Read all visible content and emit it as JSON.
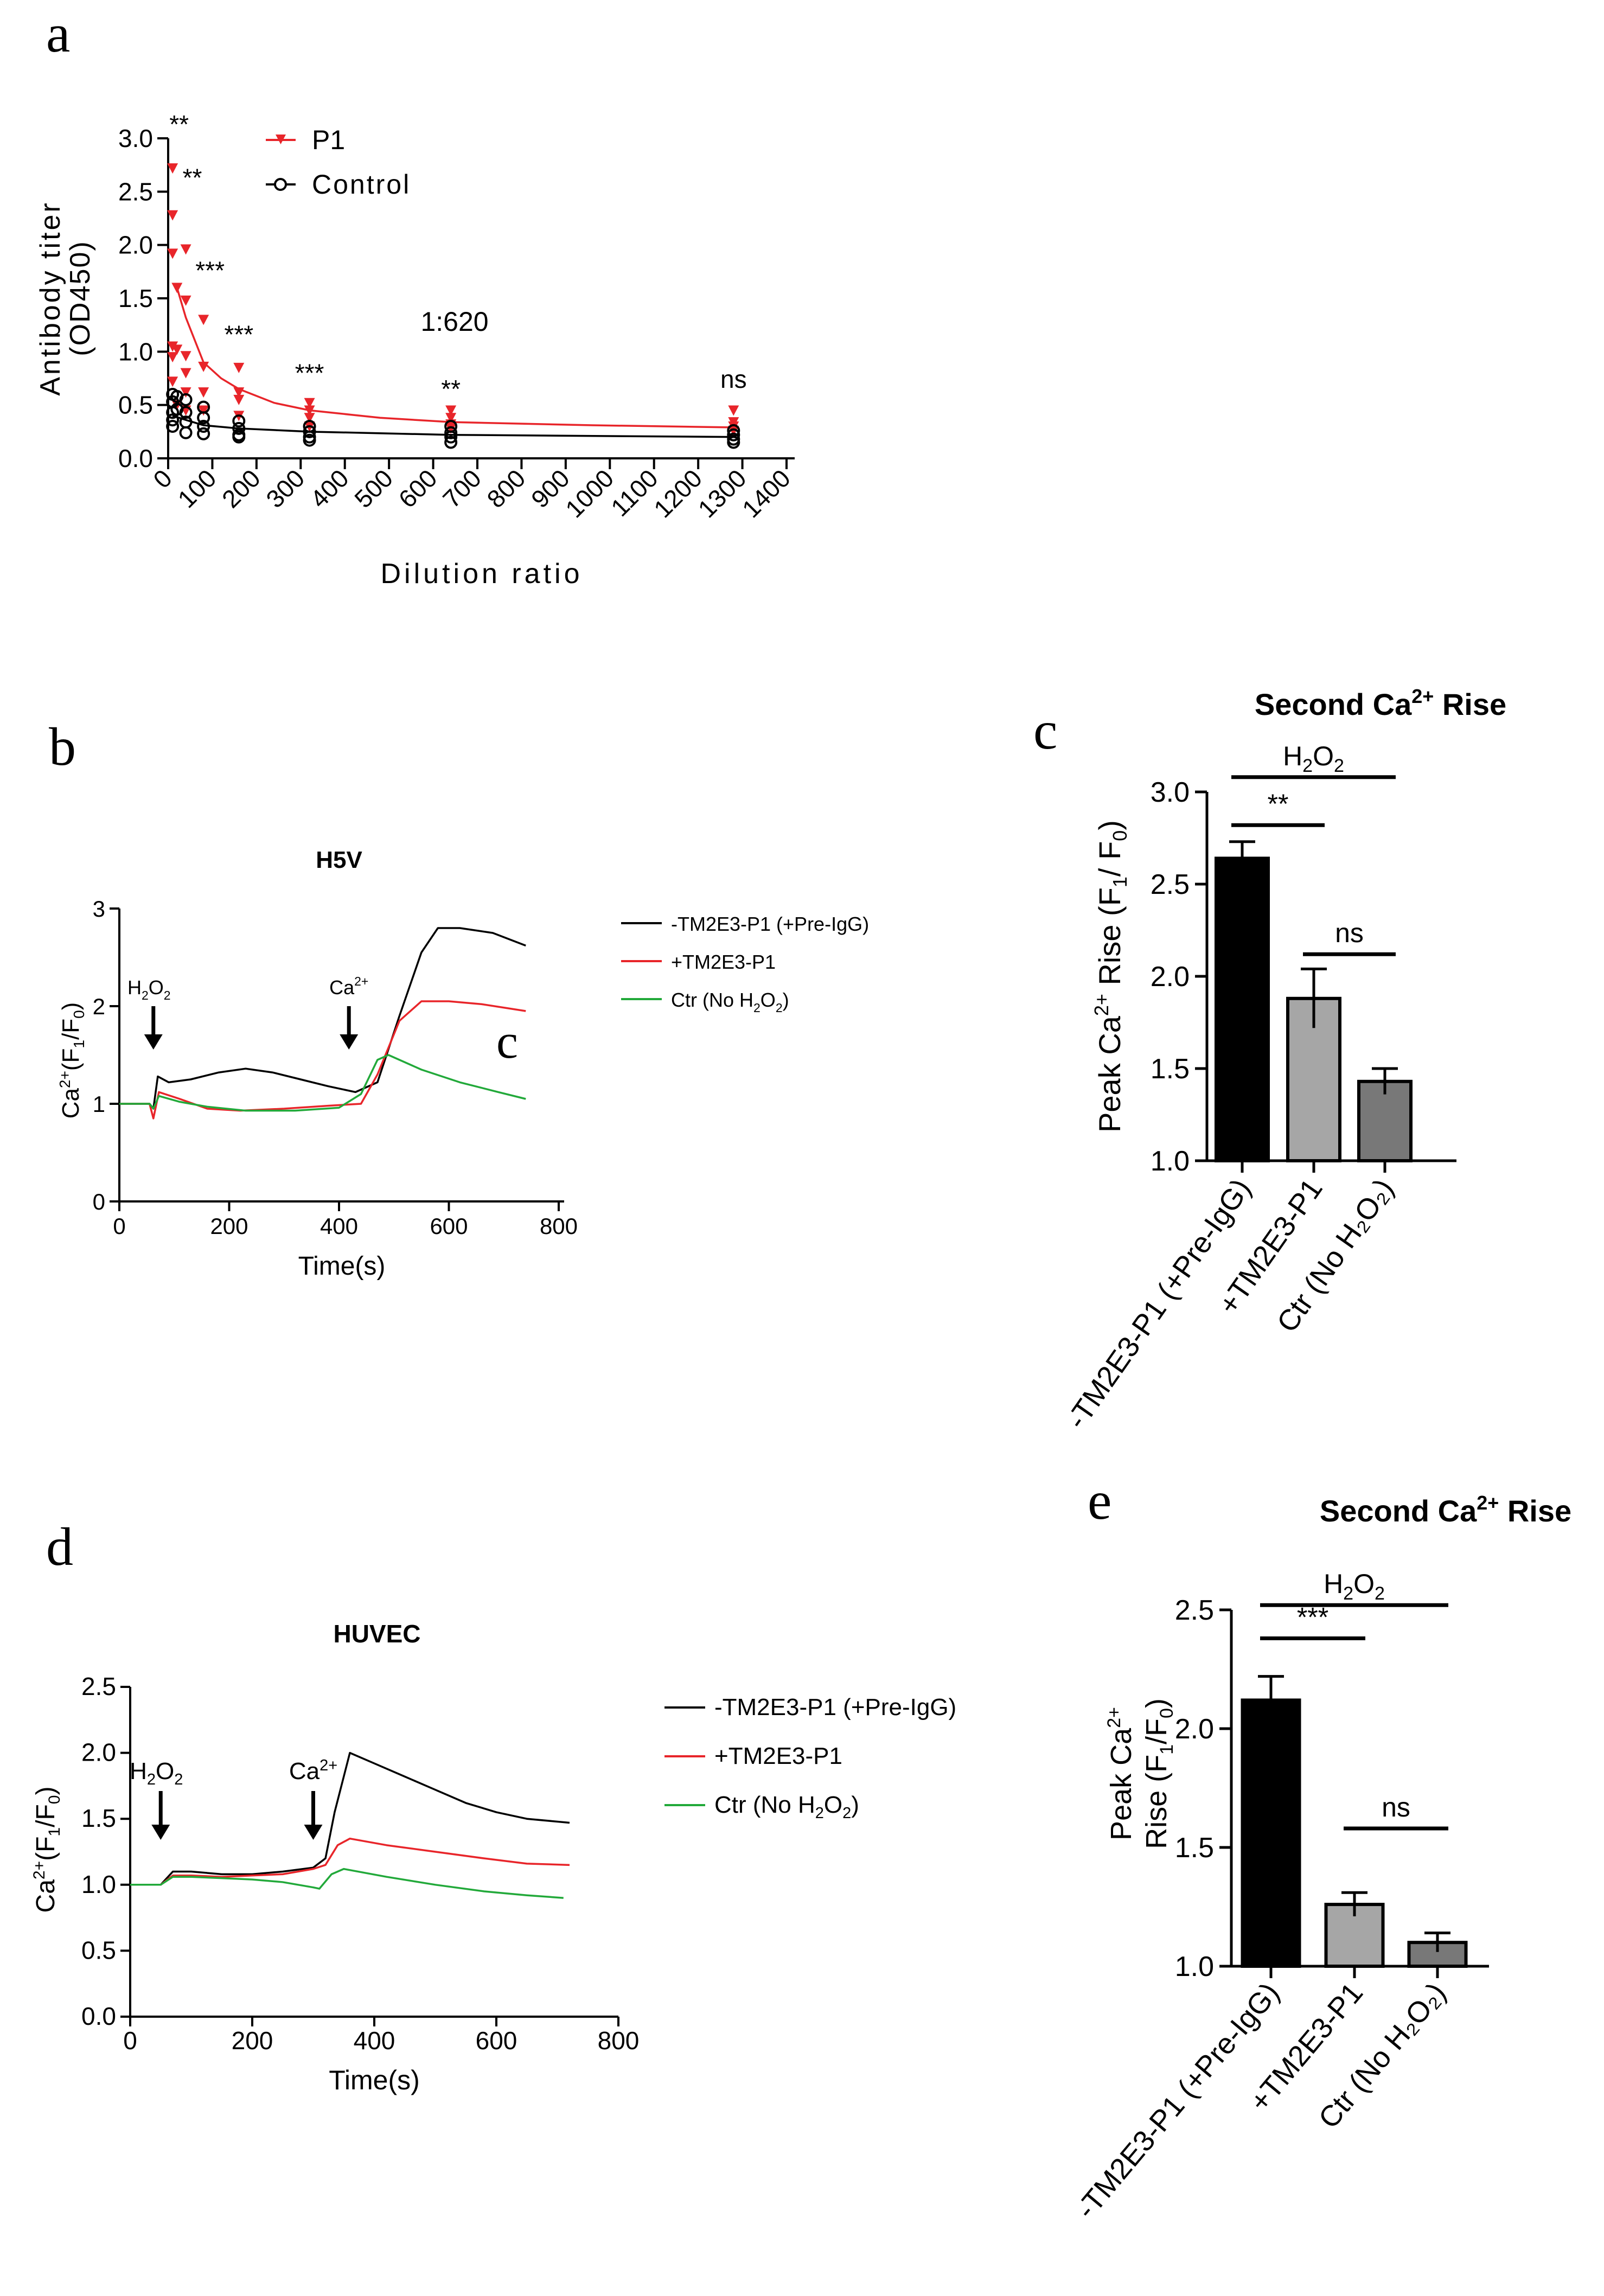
{
  "colors": {
    "p1": "#e8252a",
    "control": "#000000",
    "black_trace": "#000000",
    "red_trace": "#e8252a",
    "green_trace": "#22a93a",
    "bar_black": "#000000",
    "bar_light": "#a6a6a6",
    "bar_mid": "#787878"
  },
  "chart_data": [
    {
      "panel": "a",
      "type": "scatter",
      "panel_label": "a",
      "xlabel": "Dilution ratio",
      "ylabel_line1": "Antibody titer",
      "ylabel_line2": "(OD450)",
      "xlim": [
        0,
        1400
      ],
      "ylim": [
        0,
        3.0
      ],
      "xticks": [
        "0",
        "100",
        "200",
        "300",
        "400",
        "500",
        "600",
        "700",
        "800",
        "900",
        "1000",
        "1100",
        "1200",
        "1300",
        "1400"
      ],
      "yticks": [
        "0.0",
        "0.5",
        "1.0",
        "1.5",
        "2.0",
        "2.5",
        "3.0"
      ],
      "legend": [
        "P1",
        "Control"
      ],
      "annotation": "1:620",
      "series": [
        {
          "name": "P1",
          "marker": "triangle-down",
          "points": [
            [
              10,
              2.72
            ],
            [
              10,
              2.28
            ],
            [
              10,
              1.92
            ],
            [
              10,
              1.05
            ],
            [
              10,
              0.95
            ],
            [
              10,
              0.72
            ],
            [
              20,
              1.6
            ],
            [
              20,
              1.02
            ],
            [
              20,
              0.5
            ],
            [
              40,
              1.96
            ],
            [
              40,
              1.48
            ],
            [
              40,
              0.96
            ],
            [
              40,
              0.8
            ],
            [
              40,
              0.62
            ],
            [
              40,
              0.45
            ],
            [
              80,
              1.3
            ],
            [
              80,
              0.86
            ],
            [
              80,
              0.62
            ],
            [
              80,
              0.45
            ],
            [
              160,
              0.85
            ],
            [
              160,
              0.62
            ],
            [
              160,
              0.55
            ],
            [
              160,
              0.4
            ],
            [
              320,
              0.52
            ],
            [
              320,
              0.45
            ],
            [
              320,
              0.38
            ],
            [
              320,
              0.3
            ],
            [
              640,
              0.45
            ],
            [
              640,
              0.38
            ],
            [
              640,
              0.32
            ],
            [
              640,
              0.28
            ],
            [
              1280,
              0.45
            ],
            [
              1280,
              0.34
            ],
            [
              1280,
              0.3
            ],
            [
              1280,
              0.26
            ]
          ],
          "fit": [
            [
              20,
              1.6
            ],
            [
              40,
              1.32
            ],
            [
              80,
              0.9
            ],
            [
              120,
              0.75
            ],
            [
              160,
              0.65
            ],
            [
              240,
              0.52
            ],
            [
              320,
              0.45
            ],
            [
              480,
              0.38
            ],
            [
              640,
              0.34
            ],
            [
              960,
              0.31
            ],
            [
              1280,
              0.29
            ]
          ]
        },
        {
          "name": "Control",
          "marker": "circle-open",
          "points": [
            [
              10,
              0.6
            ],
            [
              10,
              0.53
            ],
            [
              10,
              0.43
            ],
            [
              10,
              0.36
            ],
            [
              10,
              0.3
            ],
            [
              20,
              0.58
            ],
            [
              20,
              0.46
            ],
            [
              40,
              0.55
            ],
            [
              40,
              0.43
            ],
            [
              40,
              0.34
            ],
            [
              40,
              0.24
            ],
            [
              80,
              0.48
            ],
            [
              80,
              0.38
            ],
            [
              80,
              0.3
            ],
            [
              80,
              0.23
            ],
            [
              160,
              0.35
            ],
            [
              160,
              0.28
            ],
            [
              160,
              0.22
            ],
            [
              160,
              0.2
            ],
            [
              320,
              0.3
            ],
            [
              320,
              0.25
            ],
            [
              320,
              0.2
            ],
            [
              320,
              0.17
            ],
            [
              640,
              0.3
            ],
            [
              640,
              0.24
            ],
            [
              640,
              0.2
            ],
            [
              640,
              0.15
            ],
            [
              1280,
              0.26
            ],
            [
              1280,
              0.22
            ],
            [
              1280,
              0.18
            ],
            [
              1280,
              0.15
            ]
          ],
          "fit": [
            [
              10,
              0.4
            ],
            [
              40,
              0.36
            ],
            [
              80,
              0.31
            ],
            [
              160,
              0.28
            ],
            [
              320,
              0.25
            ],
            [
              640,
              0.22
            ],
            [
              1280,
              0.2
            ]
          ]
        }
      ],
      "significance": [
        {
          "x": 10,
          "y": 3.05,
          "label": "**"
        },
        {
          "x": 40,
          "y": 2.55,
          "label": "**"
        },
        {
          "x": 80,
          "y": 1.68,
          "label": "***"
        },
        {
          "x": 160,
          "y": 1.08,
          "label": "***"
        },
        {
          "x": 320,
          "y": 0.72,
          "label": "***"
        },
        {
          "x": 640,
          "y": 0.57,
          "label": "**"
        },
        {
          "x": 1280,
          "y": 0.66,
          "label": "ns"
        }
      ]
    },
    {
      "panel": "b",
      "type": "line",
      "panel_label": "b",
      "title": "H5V",
      "xlabel": "Time(s)",
      "ylabel_main": "Ca",
      "ylabel_sup": "2+",
      "ylabel_rest": "(F",
      "ylabel_sub1": "1",
      "ylabel_mid": "/F",
      "ylabel_sub0": "0",
      "ylabel_end": ")",
      "xlim": [
        0,
        800
      ],
      "ylim": [
        0,
        3
      ],
      "xticks": [
        "0",
        "200",
        "400",
        "600",
        "800"
      ],
      "yticks": [
        "0",
        "1",
        "2",
        "3"
      ],
      "overlay_label": "c",
      "arrows": [
        {
          "x": 62,
          "label_main": "H",
          "label_sub1": "2",
          "label_mid": "O",
          "label_sub2": "2"
        },
        {
          "x": 418,
          "label_main": "Ca",
          "label_sup": "2+"
        }
      ],
      "legend": [
        {
          "text": "-TM2E3-P1 (+Pre-IgG)",
          "series": 0
        },
        {
          "text": "+TM2E3-P1",
          "series": 1
        },
        {
          "text_main": "Ctr (No H",
          "text_sub1": "2",
          "text_mid": "O",
          "text_sub2": "2",
          "text_end": ")",
          "series": 2
        }
      ],
      "series": [
        {
          "name": "-TM2E3-P1 (+Pre-IgG)",
          "points": [
            [
              0,
              1.0
            ],
            [
              55,
              1.0
            ],
            [
              62,
              0.95
            ],
            [
              70,
              1.28
            ],
            [
              90,
              1.22
            ],
            [
              130,
              1.25
            ],
            [
              180,
              1.32
            ],
            [
              230,
              1.36
            ],
            [
              280,
              1.32
            ],
            [
              330,
              1.25
            ],
            [
              380,
              1.18
            ],
            [
              430,
              1.12
            ],
            [
              470,
              1.22
            ],
            [
              510,
              1.9
            ],
            [
              550,
              2.55
            ],
            [
              580,
              2.8
            ],
            [
              620,
              2.8
            ],
            [
              680,
              2.75
            ],
            [
              740,
              2.62
            ]
          ]
        },
        {
          "name": "+TM2E3-P1",
          "points": [
            [
              0,
              1.0
            ],
            [
              55,
              1.0
            ],
            [
              62,
              0.85
            ],
            [
              72,
              1.12
            ],
            [
              110,
              1.05
            ],
            [
              160,
              0.95
            ],
            [
              220,
              0.93
            ],
            [
              300,
              0.95
            ],
            [
              380,
              0.98
            ],
            [
              440,
              1.0
            ],
            [
              470,
              1.3
            ],
            [
              510,
              1.85
            ],
            [
              550,
              2.05
            ],
            [
              600,
              2.05
            ],
            [
              660,
              2.02
            ],
            [
              740,
              1.95
            ]
          ]
        },
        {
          "name": "Ctr (No H2O2)",
          "points": [
            [
              0,
              1.0
            ],
            [
              55,
              1.0
            ],
            [
              62,
              0.95
            ],
            [
              72,
              1.08
            ],
            [
              110,
              1.02
            ],
            [
              160,
              0.97
            ],
            [
              230,
              0.93
            ],
            [
              320,
              0.93
            ],
            [
              400,
              0.96
            ],
            [
              440,
              1.1
            ],
            [
              470,
              1.45
            ],
            [
              490,
              1.5
            ],
            [
              550,
              1.35
            ],
            [
              620,
              1.22
            ],
            [
              690,
              1.12
            ],
            [
              740,
              1.05
            ]
          ]
        }
      ]
    },
    {
      "panel": "c",
      "type": "bar",
      "panel_label": "c",
      "title_main": "Second Ca",
      "title_sup": "2+",
      "title_end": " Rise",
      "ylabel": "Peak Ca",
      "ylabel_sup": "2+",
      "ylabel_rest": " Rise (F",
      "ylabel_sub1": "1",
      "ylabel_mid": "/ F",
      "ylabel_sub0": "0",
      "ylabel_end": ")",
      "ylim": [
        1.0,
        3.0
      ],
      "yticks": [
        "1.0",
        "1.5",
        "2.0",
        "2.5",
        "3.0"
      ],
      "categories": [
        "-TM2E3-P1 (+Pre-IgG)",
        "+TM2E3-P1",
        "Ctr (No H₂O₂)"
      ],
      "values": [
        2.64,
        1.88,
        1.43
      ],
      "errors": [
        0.09,
        0.16,
        0.07
      ],
      "brackets": [
        {
          "from": 0,
          "to": 2,
          "y": 3.08,
          "label_main": "H",
          "label_sub1": "2",
          "label_mid": "O",
          "label_sub2": "2"
        },
        {
          "from": 0,
          "to": 1,
          "y": 2.82,
          "label": "**"
        },
        {
          "from": 1,
          "to": 2,
          "y": 2.12,
          "label": "ns"
        }
      ]
    },
    {
      "panel": "d",
      "type": "line",
      "panel_label": "d",
      "title": "HUVEC",
      "xlabel": "Time(s)",
      "xlim": [
        0,
        800
      ],
      "ylim": [
        0,
        2.5
      ],
      "xticks": [
        "0",
        "200",
        "400",
        "600",
        "800"
      ],
      "yticks": [
        "0.0",
        "0.5",
        "1.0",
        "1.5",
        "2.0",
        "2.5"
      ],
      "arrows": [
        {
          "x": 50,
          "label_main": "H",
          "label_sub1": "2",
          "label_mid": "O",
          "label_sub2": "2"
        },
        {
          "x": 300,
          "label_main": "Ca",
          "label_sup": "2+"
        }
      ],
      "legend": [
        {
          "text": "-TM2E3-P1 (+Pre-IgG)",
          "series": 0
        },
        {
          "text": "+TM2E3-P1",
          "series": 1
        },
        {
          "text_main": "Ctr (No H",
          "text_sub1": "2",
          "text_mid": "O",
          "text_sub2": "2",
          "text_end": ")",
          "series": 2
        }
      ],
      "series": [
        {
          "name": "-TM2E3-P1 (+Pre-IgG)",
          "points": [
            [
              0,
              1.0
            ],
            [
              50,
              1.0
            ],
            [
              70,
              1.1
            ],
            [
              100,
              1.1
            ],
            [
              150,
              1.08
            ],
            [
              200,
              1.08
            ],
            [
              250,
              1.1
            ],
            [
              300,
              1.13
            ],
            [
              320,
              1.2
            ],
            [
              335,
              1.55
            ],
            [
              360,
              2.0
            ],
            [
              400,
              1.92
            ],
            [
              450,
              1.82
            ],
            [
              500,
              1.72
            ],
            [
              550,
              1.62
            ],
            [
              600,
              1.55
            ],
            [
              650,
              1.5
            ],
            [
              720,
              1.47
            ]
          ]
        },
        {
          "name": "+TM2E3-P1",
          "points": [
            [
              0,
              1.0
            ],
            [
              50,
              1.0
            ],
            [
              70,
              1.07
            ],
            [
              100,
              1.07
            ],
            [
              150,
              1.06
            ],
            [
              200,
              1.07
            ],
            [
              250,
              1.08
            ],
            [
              300,
              1.12
            ],
            [
              320,
              1.15
            ],
            [
              340,
              1.3
            ],
            [
              360,
              1.35
            ],
            [
              420,
              1.3
            ],
            [
              500,
              1.25
            ],
            [
              580,
              1.2
            ],
            [
              650,
              1.16
            ],
            [
              720,
              1.15
            ]
          ]
        },
        {
          "name": "Ctr (No H2O2)",
          "points": [
            [
              0,
              1.0
            ],
            [
              50,
              1.0
            ],
            [
              70,
              1.06
            ],
            [
              100,
              1.06
            ],
            [
              150,
              1.05
            ],
            [
              200,
              1.04
            ],
            [
              250,
              1.02
            ],
            [
              300,
              0.98
            ],
            [
              310,
              0.97
            ],
            [
              330,
              1.08
            ],
            [
              350,
              1.12
            ],
            [
              420,
              1.06
            ],
            [
              500,
              1.0
            ],
            [
              580,
              0.95
            ],
            [
              650,
              0.92
            ],
            [
              710,
              0.9
            ]
          ]
        }
      ]
    },
    {
      "panel": "e",
      "type": "bar",
      "panel_label": "e",
      "title_main": "Second Ca",
      "title_sup": "2+",
      "title_end": " Rise",
      "ylabel_line1": "Peak Ca",
      "ylabel_sup": "2+",
      "ylabel_line2": "Rise (F",
      "ylabel_sub1": "1",
      "ylabel_mid": "/F",
      "ylabel_sub0": "0",
      "ylabel_end": ")",
      "ylim": [
        1.0,
        2.5
      ],
      "yticks": [
        "1.0",
        "1.5",
        "2.0",
        "2.5"
      ],
      "categories": [
        "-TM2E3-P1 (+Pre-IgG)",
        "+TM2E3-P1",
        "Ctr (No H₂O₂)"
      ],
      "values": [
        2.12,
        1.26,
        1.1
      ],
      "errors": [
        0.1,
        0.05,
        0.04
      ],
      "brackets": [
        {
          "from": 0,
          "to": 2,
          "y": 2.52,
          "label_main": "H",
          "label_sub1": "2",
          "label_mid": "O",
          "label_sub2": "2"
        },
        {
          "from": 0,
          "to": 1,
          "y": 2.38,
          "label": "***"
        },
        {
          "from": 1,
          "to": 2,
          "y": 1.58,
          "label": "ns"
        }
      ]
    }
  ]
}
